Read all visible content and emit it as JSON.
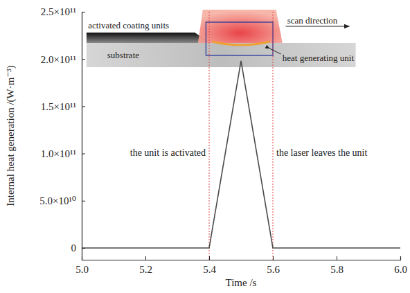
{
  "chart_data": {
    "type": "line",
    "x_label": "Time /s",
    "y_label": "Internal heat generation /(W·m⁻³)",
    "x": [
      5.0,
      5.4,
      5.5,
      5.6,
      6.0
    ],
    "values": [
      0,
      0,
      198000000000,
      0,
      0
    ],
    "color": "#4a4a4a",
    "line_style": "solid",
    "xlim": [
      5.0,
      6.0
    ],
    "xticks": [
      {
        "value": 5.0,
        "label": "5.0"
      },
      5.2,
      5.4,
      5.6,
      5.8,
      {
        "value": 6.0,
        "label": "6.0"
      }
    ],
    "ylim": [
      -12500000000,
      250000000000
    ],
    "yticks": [
      0,
      {
        "value": 50000000000,
        "label": "5.0×10¹⁰"
      },
      {
        "value": 100000000000,
        "label": "1.0×10¹¹"
      },
      {
        "value": 150000000000,
        "label": "1.5×10¹¹"
      },
      {
        "value": 200000000000,
        "label": "2.0×10¹¹"
      },
      {
        "value": 250000000000,
        "label": "2.5×10¹¹"
      }
    ],
    "grid": false,
    "reference_lines": [
      5.4,
      5.6
    ],
    "annotations": [
      "the unit is activated",
      "the laser leaves the unit"
    ],
    "inset_labels": [
      "activated coating units",
      "scan direction",
      "substrate",
      "heat generating unit"
    ]
  }
}
